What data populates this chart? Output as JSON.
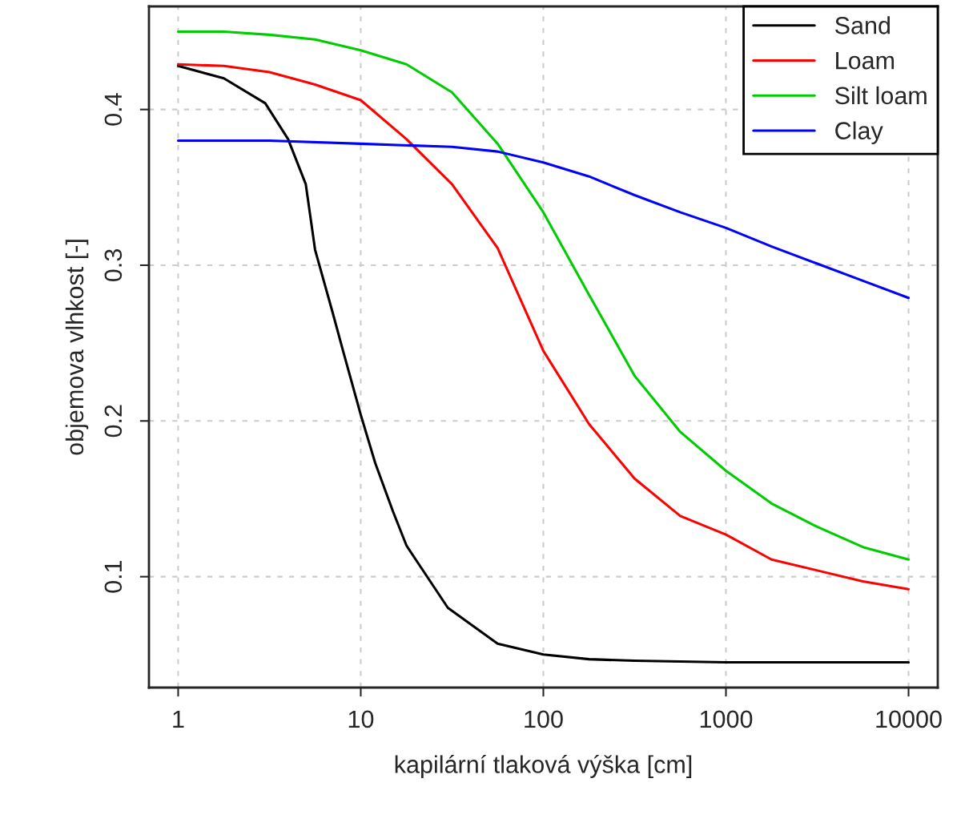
{
  "chart_data": {
    "type": "line",
    "xlabel": "kapilární tlaková výška [cm]",
    "ylabel": "objemova vlhkost [-]",
    "log": "x",
    "xlim": [
      0.692,
      14454
    ],
    "ylim": [
      0.0288,
      0.4662
    ],
    "xticks": [
      1,
      10,
      100,
      1000,
      10000
    ],
    "yticks": [
      0.1,
      0.2,
      0.3,
      0.4
    ],
    "grid": true,
    "legend": "top right",
    "line_style": "solid",
    "marker": "none",
    "series": [
      {
        "name": "Sand",
        "color": "#000000",
        "x": [
          1,
          1.78,
          3,
          4,
          5,
          5.62,
          7,
          8,
          10,
          12,
          15,
          17.8,
          20,
          30,
          56.2,
          100,
          178,
          316,
          1000,
          10000
        ],
        "values": [
          0.428,
          0.42,
          0.404,
          0.381,
          0.352,
          0.31,
          0.27,
          0.245,
          0.204,
          0.173,
          0.142,
          0.12,
          0.111,
          0.08,
          0.057,
          0.05,
          0.047,
          0.046,
          0.045,
          0.045
        ]
      },
      {
        "name": "Loam",
        "color": "#ff0000",
        "x": [
          1,
          1.78,
          3.16,
          5.62,
          10,
          17.8,
          31.6,
          56.2,
          100,
          178,
          316,
          562,
          1000,
          1778,
          3162,
          5623,
          10000
        ],
        "values": [
          0.429,
          0.428,
          0.424,
          0.416,
          0.406,
          0.381,
          0.352,
          0.311,
          0.245,
          0.198,
          0.163,
          0.139,
          0.127,
          0.111,
          0.104,
          0.097,
          0.092
        ]
      },
      {
        "name": "Silt loam",
        "color": "#00cd00",
        "x": [
          1,
          1.78,
          3.16,
          5.62,
          10,
          17.8,
          31.6,
          56.2,
          100,
          178,
          316,
          562,
          1000,
          1778,
          3162,
          5623,
          10000
        ],
        "values": [
          0.45,
          0.45,
          0.448,
          0.445,
          0.438,
          0.429,
          0.411,
          0.378,
          0.334,
          0.281,
          0.229,
          0.193,
          0.168,
          0.147,
          0.132,
          0.119,
          0.111
        ]
      },
      {
        "name": "Clay",
        "color": "#0000ff",
        "x": [
          1,
          3.16,
          10,
          31.6,
          56.2,
          100,
          178,
          316,
          562,
          1000,
          1778,
          3162,
          5623,
          10000
        ],
        "values": [
          0.38,
          0.38,
          0.378,
          0.376,
          0.373,
          0.366,
          0.357,
          0.345,
          0.334,
          0.324,
          0.312,
          0.301,
          0.29,
          0.279
        ]
      }
    ]
  }
}
